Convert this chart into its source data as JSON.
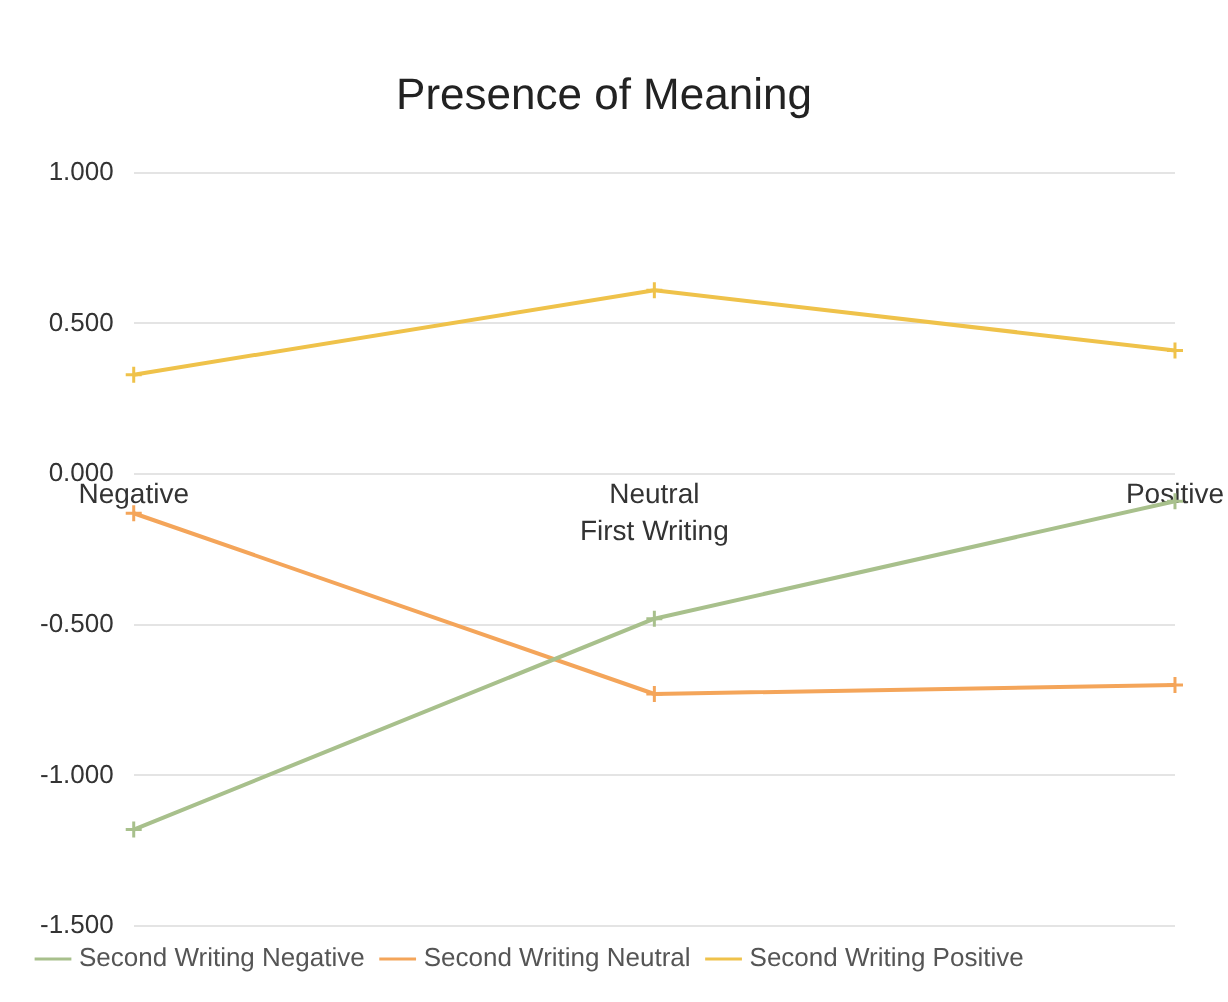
{
  "chart_data": {
    "type": "line",
    "title": "Presence of Meaning",
    "xlabel": "First Writing",
    "categories": [
      "Negative",
      "Neutral",
      "Positive"
    ],
    "series": [
      {
        "name": "Second Writing Negative",
        "color": "#a8c08c",
        "values": [
          -1.18,
          -0.48,
          -0.09
        ]
      },
      {
        "name": "Second Writing Neutral",
        "color": "#f4a55a",
        "values": [
          -0.13,
          -0.73,
          -0.7
        ]
      },
      {
        "name": "Second Writing Positive",
        "color": "#efc24a",
        "values": [
          0.33,
          0.61,
          0.41
        ]
      }
    ],
    "ylim": [
      -1.5,
      1
    ],
    "yticks": [
      {
        "value": -1.5,
        "label": "-1.500"
      },
      {
        "value": -1,
        "label": "-1.000"
      },
      {
        "value": -0.5,
        "label": "-0.500"
      },
      {
        "value": 0,
        "label": "0.000"
      },
      {
        "value": 0.5,
        "label": "0.500"
      },
      {
        "value": 1,
        "label": "1.000"
      }
    ],
    "grid": "y",
    "legend": "bottom",
    "marker": "cross"
  }
}
